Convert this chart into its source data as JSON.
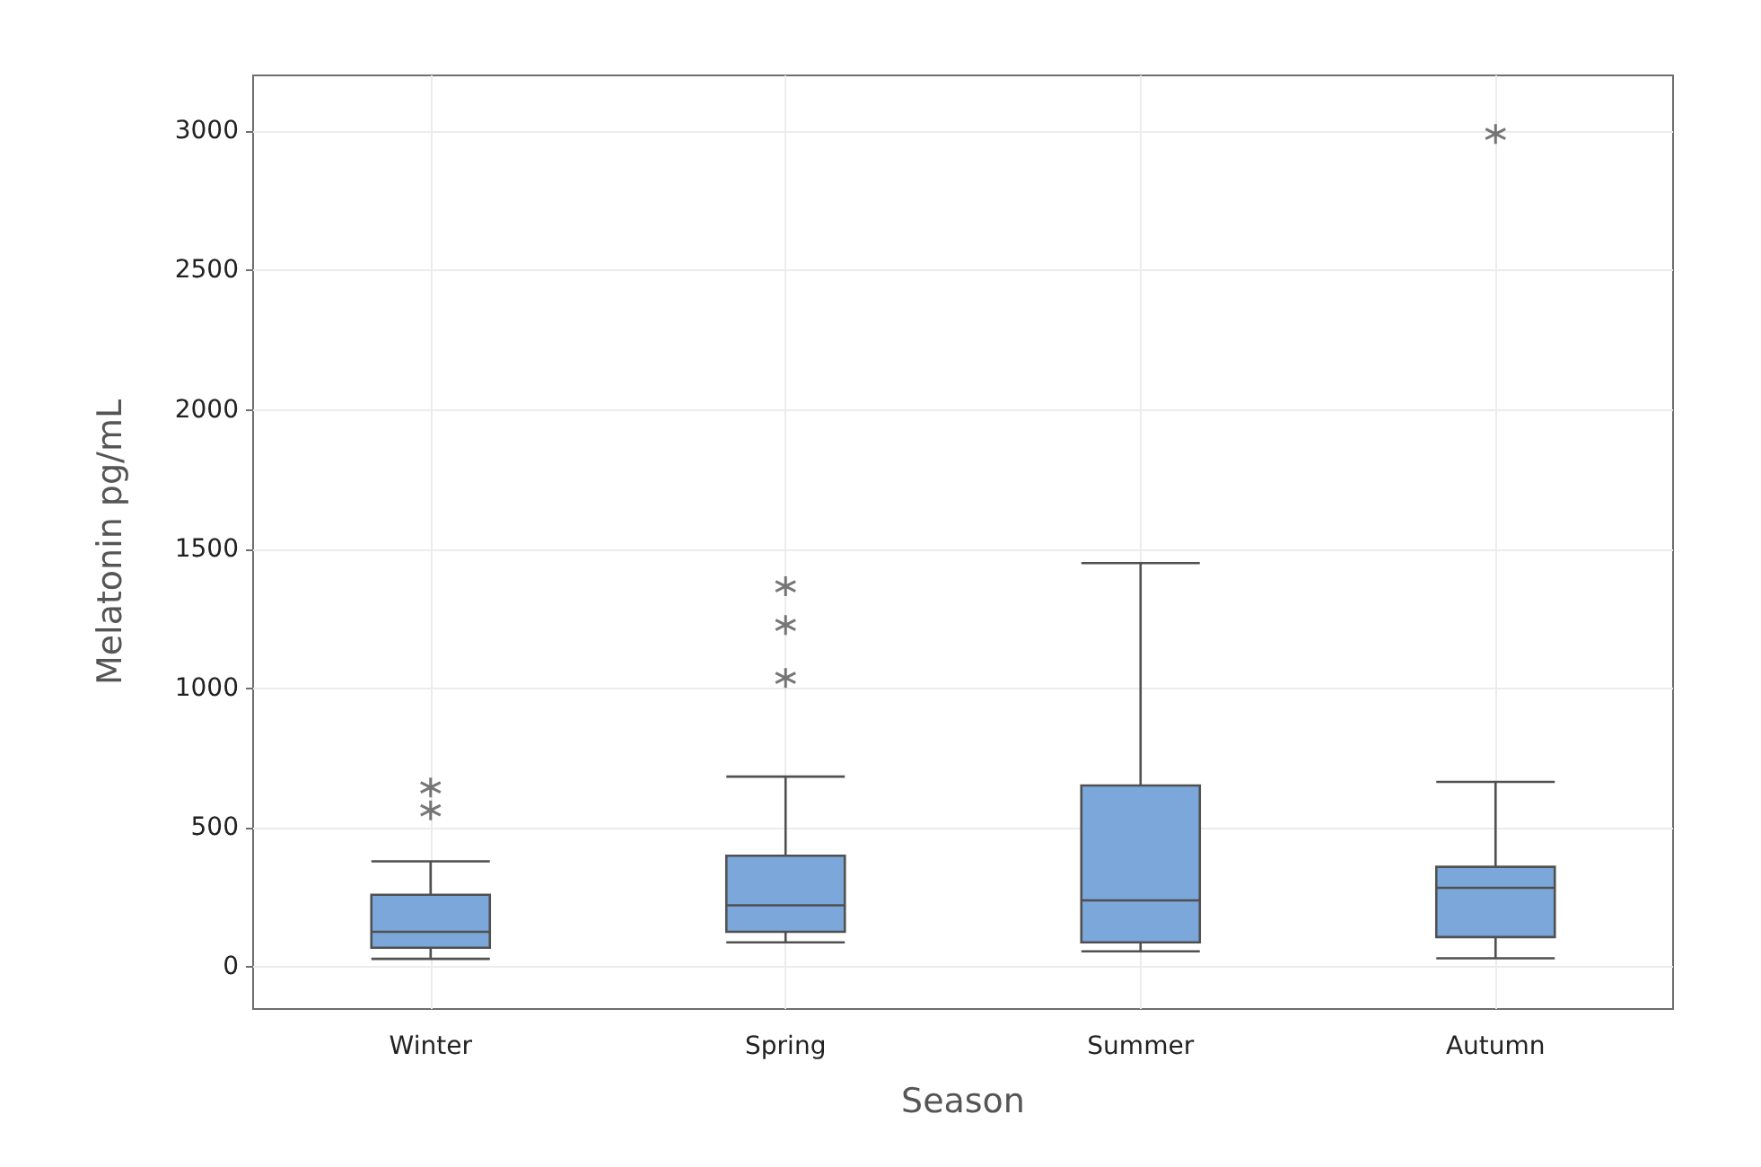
{
  "chart_data": {
    "type": "box",
    "xlabel": "Season",
    "ylabel": "Melatonin pg/mL",
    "categories": [
      "Winter",
      "Spring",
      "Summer",
      "Autumn"
    ],
    "color": "#7ba7db",
    "boxes": [
      {
        "low": 30,
        "q1": 70,
        "median": 127,
        "q3": 260,
        "high": 380,
        "outliers": [
          563,
          645
        ]
      },
      {
        "low": 89,
        "q1": 127,
        "median": 222,
        "q3": 400,
        "high": 684,
        "outliers": [
          1038,
          1228,
          1367
        ]
      },
      {
        "low": 57,
        "q1": 89,
        "median": 240,
        "q3": 652,
        "high": 1450
      },
      {
        "low": 32,
        "q1": 108,
        "median": 285,
        "q3": 360,
        "high": 665,
        "outliers": [
          2990
        ]
      }
    ],
    "ylim": [
      -150,
      3200
    ],
    "yticks": [
      0,
      500,
      1000,
      1500,
      2000,
      2500,
      3000
    ],
    "grid": true,
    "legend": false,
    "marker": "star"
  }
}
